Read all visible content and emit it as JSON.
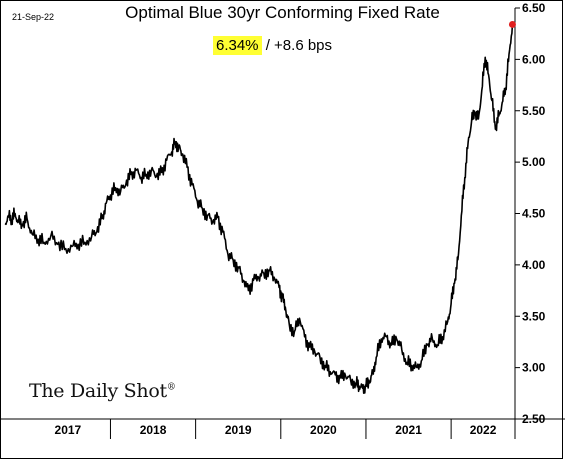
{
  "date": "21-Sep-22",
  "brand": "The Daily Shot",
  "brand_mark": "®",
  "colors": {
    "line": "#000000",
    "endpoint": "#e02020",
    "highlight": "#ffff33"
  },
  "chart_data": {
    "type": "line",
    "title": "Optimal Blue 30yr Conforming Fixed Rate",
    "subtitle_value": "6.34%",
    "subtitle_sep": "/",
    "subtitle_change": "+8.6 bps",
    "ylim": [
      2.5,
      6.5
    ],
    "yticks": [
      "2.50",
      "3.00",
      "3.50",
      "4.00",
      "4.50",
      "5.00",
      "5.50",
      "6.00",
      "6.50"
    ],
    "xlim": [
      2016.75,
      2022.75
    ],
    "xticks": [
      "2017",
      "2018",
      "2019",
      "2020",
      "2021",
      "2022"
    ],
    "grid": false,
    "legend": "none",
    "points": [
      [
        2016.76,
        4.4
      ],
      [
        2016.8,
        4.48
      ],
      [
        2016.84,
        4.44
      ],
      [
        2016.88,
        4.5
      ],
      [
        2016.92,
        4.42
      ],
      [
        2016.97,
        4.38
      ],
      [
        2017.02,
        4.45
      ],
      [
        2017.08,
        4.3
      ],
      [
        2017.15,
        4.25
      ],
      [
        2017.22,
        4.22
      ],
      [
        2017.3,
        4.28
      ],
      [
        2017.38,
        4.2
      ],
      [
        2017.46,
        4.15
      ],
      [
        2017.55,
        4.18
      ],
      [
        2017.62,
        4.2
      ],
      [
        2017.7,
        4.22
      ],
      [
        2017.78,
        4.28
      ],
      [
        2017.84,
        4.32
      ],
      [
        2017.9,
        4.45
      ],
      [
        2017.95,
        4.6
      ],
      [
        2018.0,
        4.68
      ],
      [
        2018.06,
        4.75
      ],
      [
        2018.12,
        4.72
      ],
      [
        2018.18,
        4.78
      ],
      [
        2018.24,
        4.88
      ],
      [
        2018.3,
        4.92
      ],
      [
        2018.36,
        4.85
      ],
      [
        2018.42,
        4.88
      ],
      [
        2018.48,
        4.92
      ],
      [
        2018.54,
        4.86
      ],
      [
        2018.6,
        4.9
      ],
      [
        2018.66,
        5.02
      ],
      [
        2018.72,
        5.1
      ],
      [
        2018.76,
        5.2
      ],
      [
        2018.8,
        5.15
      ],
      [
        2018.84,
        5.08
      ],
      [
        2018.9,
        4.95
      ],
      [
        2018.96,
        4.78
      ],
      [
        2019.02,
        4.62
      ],
      [
        2019.08,
        4.55
      ],
      [
        2019.14,
        4.48
      ],
      [
        2019.2,
        4.42
      ],
      [
        2019.26,
        4.46
      ],
      [
        2019.32,
        4.32
      ],
      [
        2019.38,
        4.1
      ],
      [
        2019.44,
        4.05
      ],
      [
        2019.5,
        3.98
      ],
      [
        2019.56,
        3.85
      ],
      [
        2019.62,
        3.75
      ],
      [
        2019.68,
        3.85
      ],
      [
        2019.74,
        3.88
      ],
      [
        2019.8,
        3.92
      ],
      [
        2019.86,
        3.95
      ],
      [
        2019.92,
        3.88
      ],
      [
        2019.98,
        3.78
      ],
      [
        2020.02,
        3.68
      ],
      [
        2020.06,
        3.55
      ],
      [
        2020.1,
        3.42
      ],
      [
        2020.16,
        3.35
      ],
      [
        2020.22,
        3.48
      ],
      [
        2020.28,
        3.3
      ],
      [
        2020.34,
        3.2
      ],
      [
        2020.4,
        3.15
      ],
      [
        2020.46,
        3.1
      ],
      [
        2020.52,
        3.02
      ],
      [
        2020.58,
        2.96
      ],
      [
        2020.64,
        2.93
      ],
      [
        2020.7,
        2.9
      ],
      [
        2020.76,
        2.92
      ],
      [
        2020.82,
        2.88
      ],
      [
        2020.88,
        2.85
      ],
      [
        2020.92,
        2.82
      ],
      [
        2020.96,
        2.8
      ],
      [
        2021.0,
        2.82
      ],
      [
        2021.04,
        2.85
      ],
      [
        2021.08,
        2.95
      ],
      [
        2021.12,
        3.1
      ],
      [
        2021.18,
        3.28
      ],
      [
        2021.24,
        3.3
      ],
      [
        2021.3,
        3.22
      ],
      [
        2021.36,
        3.28
      ],
      [
        2021.42,
        3.18
      ],
      [
        2021.48,
        3.05
      ],
      [
        2021.54,
        3.02
      ],
      [
        2021.6,
        3.0
      ],
      [
        2021.66,
        3.08
      ],
      [
        2021.72,
        3.22
      ],
      [
        2021.78,
        3.28
      ],
      [
        2021.84,
        3.22
      ],
      [
        2021.9,
        3.3
      ],
      [
        2021.96,
        3.45
      ],
      [
        2022.0,
        3.62
      ],
      [
        2022.04,
        3.82
      ],
      [
        2022.08,
        4.05
      ],
      [
        2022.12,
        4.48
      ],
      [
        2022.16,
        4.85
      ],
      [
        2022.2,
        5.2
      ],
      [
        2022.24,
        5.4
      ],
      [
        2022.28,
        5.48
      ],
      [
        2022.32,
        5.42
      ],
      [
        2022.36,
        5.7
      ],
      [
        2022.4,
        6.02
      ],
      [
        2022.44,
        5.85
      ],
      [
        2022.48,
        5.6
      ],
      [
        2022.52,
        5.32
      ],
      [
        2022.56,
        5.45
      ],
      [
        2022.6,
        5.58
      ],
      [
        2022.64,
        5.72
      ],
      [
        2022.68,
        6.05
      ],
      [
        2022.72,
        6.34
      ]
    ]
  }
}
